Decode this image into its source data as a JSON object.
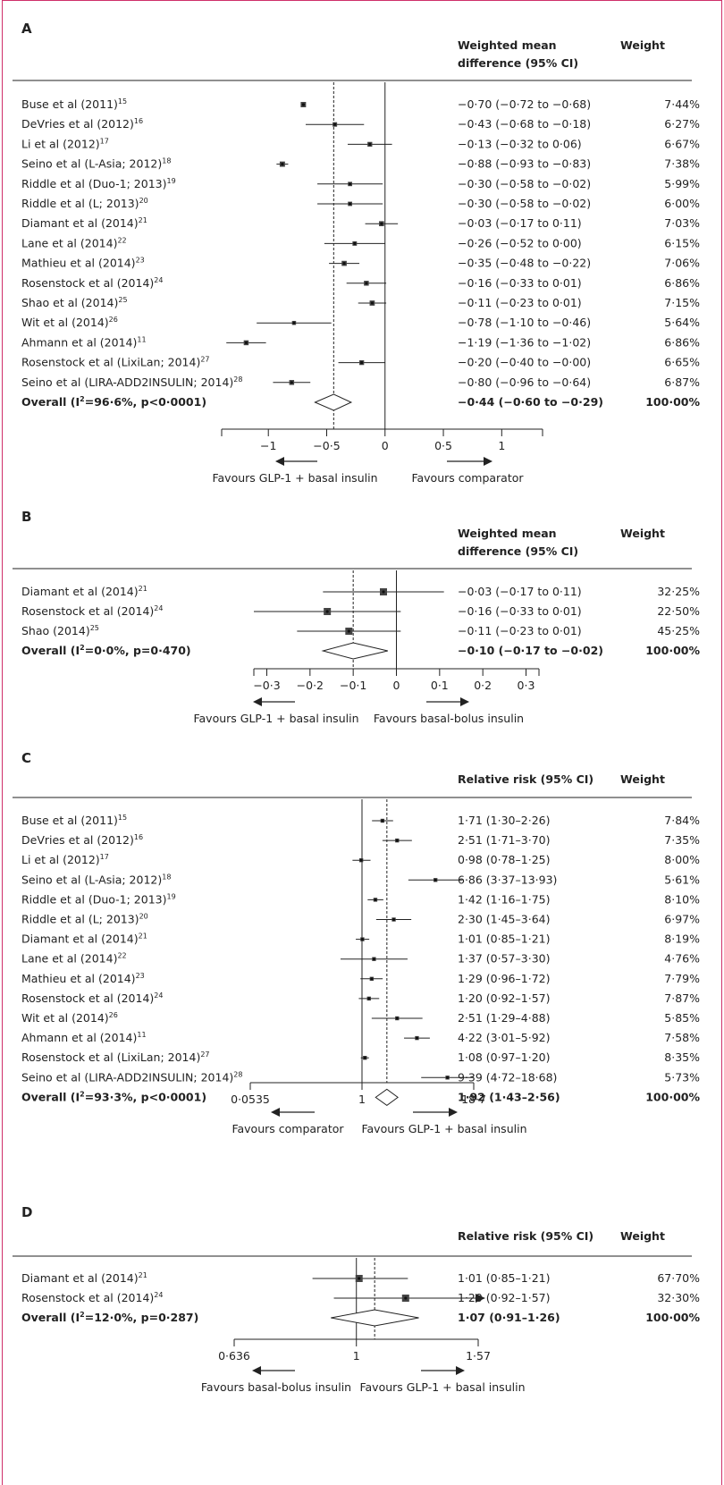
{
  "chart_data": [
    {
      "panel": "A",
      "type": "forest",
      "col_effect": "Weighted mean difference (95% CI)",
      "col_weight": "Weight",
      "scale": "linear",
      "xlim": [
        -1.4,
        1.35
      ],
      "ticks": [
        -1,
        -0.5,
        0,
        0.5,
        1
      ],
      "tick_labels": [
        "−1",
        "−0·5",
        "0",
        "0·5",
        "1"
      ],
      "pooled_estimate": -0.44,
      "favours_left": "Favours GLP-1 + basal insulin",
      "favours_right": "Favours comparator",
      "studies": [
        {
          "label": "Buse et al (2011)",
          "sup": "15",
          "est": -0.7,
          "lo": -0.72,
          "hi": -0.68,
          "ci_text": "−0·70 (−0·72 to −0·68)",
          "weight": "7·44%"
        },
        {
          "label": "DeVries et al (2012)",
          "sup": "16",
          "est": -0.43,
          "lo": -0.68,
          "hi": -0.18,
          "ci_text": "−0·43 (−0·68 to −0·18)",
          "weight": "6·27%"
        },
        {
          "label": "Li et al (2012)",
          "sup": "17",
          "est": -0.13,
          "lo": -0.32,
          "hi": 0.06,
          "ci_text": "−0·13 (−0·32 to 0·06)",
          "weight": "6·67%"
        },
        {
          "label": "Seino et al (L-Asia; 2012)",
          "sup": "18",
          "est": -0.88,
          "lo": -0.93,
          "hi": -0.83,
          "ci_text": "−0·88 (−0·93 to −0·83)",
          "weight": "7·38%"
        },
        {
          "label": "Riddle et al (Duo-1; 2013)",
          "sup": "19",
          "est": -0.3,
          "lo": -0.58,
          "hi": -0.02,
          "ci_text": "−0·30 (−0·58 to −0·02)",
          "weight": "5·99%"
        },
        {
          "label": "Riddle et al (L; 2013)",
          "sup": "20",
          "est": -0.3,
          "lo": -0.58,
          "hi": -0.02,
          "ci_text": "−0·30 (−0·58 to −0·02)",
          "weight": "6·00%"
        },
        {
          "label": "Diamant et al (2014)",
          "sup": "21",
          "est": -0.03,
          "lo": -0.17,
          "hi": 0.11,
          "ci_text": "−0·03 (−0·17 to 0·11)",
          "weight": "7·03%"
        },
        {
          "label": "Lane et al (2014)",
          "sup": "22",
          "est": -0.26,
          "lo": -0.52,
          "hi": 0.0,
          "ci_text": "−0·26 (−0·52 to 0·00)",
          "weight": "6·15%"
        },
        {
          "label": "Mathieu et al (2014)",
          "sup": "23",
          "est": -0.35,
          "lo": -0.48,
          "hi": -0.22,
          "ci_text": "−0·35 (−0·48 to −0·22)",
          "weight": "7·06%"
        },
        {
          "label": "Rosenstock et al (2014)",
          "sup": "24",
          "est": -0.16,
          "lo": -0.33,
          "hi": 0.01,
          "ci_text": "−0·16 (−0·33 to 0·01)",
          "weight": "6·86%"
        },
        {
          "label": "Shao et al (2014)",
          "sup": "25",
          "est": -0.11,
          "lo": -0.23,
          "hi": 0.01,
          "ci_text": "−0·11 (−0·23 to 0·01)",
          "weight": "7·15%"
        },
        {
          "label": "Wit et al (2014)",
          "sup": "26",
          "est": -0.78,
          "lo": -1.1,
          "hi": -0.46,
          "ci_text": "−0·78 (−1·10 to −0·46)",
          "weight": "5·64%"
        },
        {
          "label": "Ahmann et al (2014)",
          "sup": "11",
          "est": -1.19,
          "lo": -1.36,
          "hi": -1.02,
          "ci_text": "−1·19 (−1·36 to −1·02)",
          "weight": "6·86%"
        },
        {
          "label": "Rosenstock et al (LixiLan; 2014)",
          "sup": "27",
          "est": -0.2,
          "lo": -0.4,
          "hi": 0.0,
          "ci_text": "−0·20 (−0·40 to −0·00)",
          "weight": "6·65%"
        },
        {
          "label": "Seino et al (LIRA-ADD2INSULIN; 2014)",
          "sup": "28",
          "est": -0.8,
          "lo": -0.96,
          "hi": -0.64,
          "ci_text": "−0·80 (−0·96 to −0·64)",
          "weight": "6·87%"
        }
      ],
      "overall": {
        "label": "Overall (I",
        "label_tail": "=96·6%, p<0·0001)",
        "est": -0.44,
        "lo": -0.6,
        "hi": -0.29,
        "ci_text": "−0·44 (−0·60 to −0·29)",
        "weight": "100·00%"
      }
    },
    {
      "panel": "B",
      "type": "forest",
      "col_effect": "Weighted mean difference (95% CI)",
      "col_weight": "Weight",
      "scale": "linear",
      "xlim": [
        -0.33,
        0.33
      ],
      "ticks": [
        -0.3,
        -0.2,
        -0.1,
        0,
        0.1,
        0.2,
        0.3
      ],
      "tick_labels": [
        "−0·3",
        "−0·2",
        "−0·1",
        "0",
        "0·1",
        "0·2",
        "0·3"
      ],
      "pooled_estimate": -0.1,
      "favours_left": "Favours GLP-1 + basal insulin",
      "favours_right": "Favours basal-bolus insulin",
      "studies": [
        {
          "label": "Diamant et al (2014)",
          "sup": "21",
          "est": -0.03,
          "lo": -0.17,
          "hi": 0.11,
          "ci_text": "−0·03 (−0·17 to 0·11)",
          "weight": "32·25%"
        },
        {
          "label": "Rosenstock et al (2014)",
          "sup": "24",
          "est": -0.16,
          "lo": -0.33,
          "hi": 0.01,
          "ci_text": "−0·16 (−0·33 to 0·01)",
          "weight": "22·50%"
        },
        {
          "label": "Shao (2014)",
          "sup": "25",
          "est": -0.11,
          "lo": -0.23,
          "hi": 0.01,
          "ci_text": "−0·11 (−0·23 to 0·01)",
          "weight": "45·25%"
        }
      ],
      "overall": {
        "label": "Overall (I",
        "label_tail": "=0·0%, p=0·470)",
        "est": -0.1,
        "lo": -0.17,
        "hi": -0.02,
        "ci_text": "−0·10 (−0·17 to −0·02)",
        "weight": "100·00%"
      }
    },
    {
      "panel": "C",
      "type": "forest",
      "col_effect": "Relative risk (95% CI)",
      "col_weight": "Weight",
      "scale": "log",
      "xlim": [
        0.0535,
        18.7
      ],
      "ticks": [
        0.0535,
        1,
        18.7
      ],
      "tick_labels": [
        "0·0535",
        "1",
        "18·7"
      ],
      "pooled_estimate": 1.92,
      "favours_left": "Favours comparator",
      "favours_right": "Favours GLP-1 + basal insulin",
      "studies": [
        {
          "label": "Buse et al (2011)",
          "sup": "15",
          "est": 1.71,
          "lo": 1.3,
          "hi": 2.26,
          "ci_text": "1·71 (1·30–2·26)",
          "weight": "7·84%"
        },
        {
          "label": "DeVries et al (2012)",
          "sup": "16",
          "est": 2.51,
          "lo": 1.71,
          "hi": 3.7,
          "ci_text": "2·51 (1·71–3·70)",
          "weight": "7·35%"
        },
        {
          "label": "Li et al (2012)",
          "sup": "17",
          "est": 0.98,
          "lo": 0.78,
          "hi": 1.25,
          "ci_text": "0·98 (0·78–1·25)",
          "weight": "8·00%"
        },
        {
          "label": "Seino et al (L-Asia; 2012)",
          "sup": "18",
          "est": 6.86,
          "lo": 3.37,
          "hi": 13.93,
          "ci_text": "6·86 (3·37–13·93)",
          "weight": "5·61%"
        },
        {
          "label": "Riddle et al (Duo-1; 2013)",
          "sup": "19",
          "est": 1.42,
          "lo": 1.16,
          "hi": 1.75,
          "ci_text": "1·42 (1·16–1·75)",
          "weight": "8·10%"
        },
        {
          "label": "Riddle et al (L; 2013)",
          "sup": "20",
          "est": 2.3,
          "lo": 1.45,
          "hi": 3.64,
          "ci_text": "2·30 (1·45–3·64)",
          "weight": "6·97%"
        },
        {
          "label": "Diamant et al (2014)",
          "sup": "21",
          "est": 1.01,
          "lo": 0.85,
          "hi": 1.21,
          "ci_text": "1·01 (0·85–1·21)",
          "weight": "8·19%"
        },
        {
          "label": "Lane et al (2014)",
          "sup": "22",
          "est": 1.37,
          "lo": 0.57,
          "hi": 3.3,
          "ci_text": "1·37 (0·57–3·30)",
          "weight": "4·76%"
        },
        {
          "label": "Mathieu et al (2014)",
          "sup": "23",
          "est": 1.29,
          "lo": 0.96,
          "hi": 1.72,
          "ci_text": "1·29 (0·96–1·72)",
          "weight": "7·79%"
        },
        {
          "label": "Rosenstock et al (2014)",
          "sup": "24",
          "est": 1.2,
          "lo": 0.92,
          "hi": 1.57,
          "ci_text": "1·20 (0·92–1·57)",
          "weight": "7·87%"
        },
        {
          "label": "Wit et al (2014)",
          "sup": "26",
          "est": 2.51,
          "lo": 1.29,
          "hi": 4.88,
          "ci_text": "2·51 (1·29–4·88)",
          "weight": "5·85%"
        },
        {
          "label": "Ahmann et al (2014)",
          "sup": "11",
          "est": 4.22,
          "lo": 3.01,
          "hi": 5.92,
          "ci_text": "4·22 (3·01–5·92)",
          "weight": "7·58%"
        },
        {
          "label": "Rosenstock et al (LixiLan; 2014)",
          "sup": "27",
          "est": 1.08,
          "lo": 0.97,
          "hi": 1.2,
          "ci_text": "1·08 (0·97–1·20)",
          "weight": "8·35%"
        },
        {
          "label": "Seino et al (LIRA-ADD2INSULIN; 2014)",
          "sup": "28",
          "est": 9.39,
          "lo": 4.72,
          "hi": 18.68,
          "ci_text": "9·39 (4·72–18·68)",
          "weight": "5·73%"
        }
      ],
      "overall": {
        "label": "Overall (I",
        "label_tail": "=93·3%, p<0·0001)",
        "est": 1.92,
        "lo": 1.43,
        "hi": 2.56,
        "ci_text": "1·92 (1·43–2·56)",
        "weight": "100·00%"
      }
    },
    {
      "panel": "D",
      "type": "forest",
      "col_effect": "Relative risk (95% CI)",
      "col_weight": "Weight",
      "scale": "log",
      "xlim": [
        0.636,
        1.57
      ],
      "ticks": [
        0.636,
        1,
        1.57
      ],
      "tick_labels": [
        "0·636",
        "1",
        "1·57"
      ],
      "pooled_estimate": 1.07,
      "favours_left": "Favours basal-bolus insulin",
      "favours_right": "Favours GLP-1 + basal insulin",
      "studies": [
        {
          "label": "Diamant et al (2014)",
          "sup": "21",
          "est": 1.01,
          "lo": 0.85,
          "hi": 1.21,
          "ci_text": "1·01 (0·85–1·21)",
          "weight": "67·70%"
        },
        {
          "label": "Rosenstock et al (2014)",
          "sup": "24",
          "est": 1.2,
          "lo": 0.92,
          "hi": 1.57,
          "ci_text": "1·20 (0·92–1·57)",
          "weight": "32·30%",
          "arrow_right": true
        }
      ],
      "overall": {
        "label": "Overall (I",
        "label_tail": "=12·0%, p=0·287)",
        "est": 1.07,
        "lo": 0.91,
        "hi": 1.26,
        "ci_text": "1·07 (0·91–1·26)",
        "weight": "100·00%"
      }
    }
  ]
}
